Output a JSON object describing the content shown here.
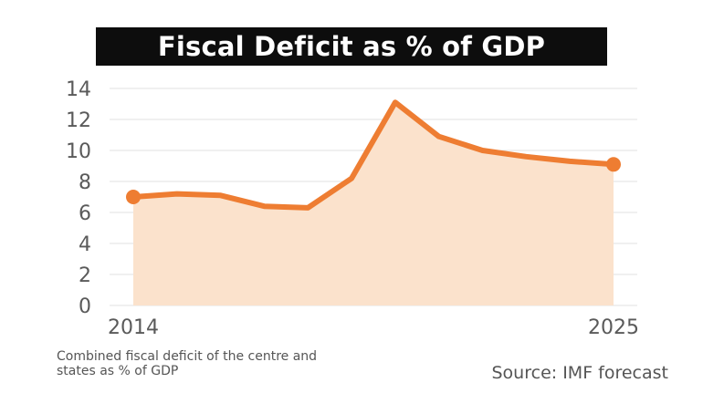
{
  "title": "Fiscal Deficit as % of GDP",
  "footnote": "Combined fiscal deficit of the centre and states as % of GDP",
  "source": "Source: IMF forecast",
  "colors": {
    "line": "#ee7d32",
    "area": "#fbe2cc",
    "grid": "#e2e2e2",
    "title_bg": "#0d0d0d",
    "text": "#555555"
  },
  "chart_data": {
    "type": "area",
    "title": "Fiscal Deficit as % of GDP",
    "xlabel": "",
    "ylabel": "",
    "x": [
      2014,
      2015,
      2016,
      2017,
      2018,
      2019,
      2020,
      2021,
      2022,
      2023,
      2024,
      2025
    ],
    "x_tick_labels": [
      "2014",
      "2025"
    ],
    "y": [
      7.0,
      7.2,
      7.1,
      6.4,
      6.3,
      8.2,
      13.1,
      10.9,
      10.0,
      9.6,
      9.3,
      9.1
    ],
    "markers_on": [
      2014,
      2025
    ],
    "ylim": [
      0,
      14
    ],
    "y_ticks": [
      0,
      2,
      4,
      6,
      8,
      10,
      12,
      14
    ],
    "grid": true,
    "legend": "none"
  }
}
